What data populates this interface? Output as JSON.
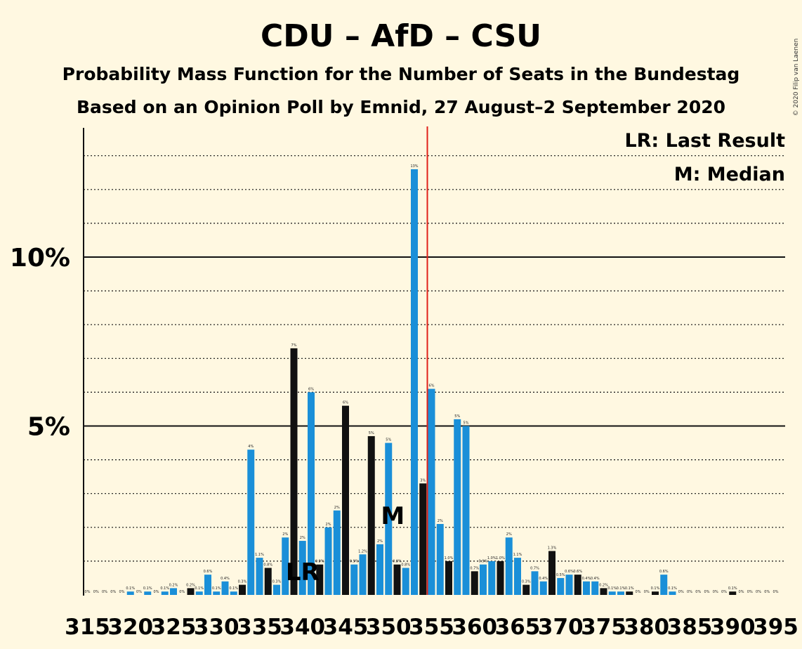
{
  "chart_data": {
    "type": "bar",
    "title": "CDU – AfD – CSU",
    "subtitle": "Probability Mass Function for the Number of Seats in the Bundestag",
    "subtitle2": "Based on an Opinion Poll by Emnid, 27 August–2 September 2020",
    "copyright": "© 2020 Filip van Laenen",
    "legend": [
      "LR: Last Result",
      "M: Median"
    ],
    "markers": {
      "last_result": "LR",
      "median": "M",
      "last_result_seats": 340,
      "median_seats": 350,
      "majority_seats": 355
    },
    "ylim": [
      0,
      13.8
    ],
    "y_ticks": [
      {
        "value": 5,
        "label": "5%"
      },
      {
        "value": 10,
        "label": "10%"
      }
    ],
    "x_tick_labels": [
      "315",
      "320",
      "325",
      "330",
      "335",
      "340",
      "345",
      "350",
      "355",
      "360",
      "365",
      "370",
      "375",
      "380",
      "385",
      "390",
      "395"
    ],
    "x_tick_values": [
      315,
      320,
      325,
      330,
      335,
      340,
      345,
      350,
      355,
      360,
      365,
      370,
      375,
      380,
      385,
      390,
      395
    ],
    "colors": {
      "blue": "#1a8fd8",
      "black": "#111111",
      "majority": "#e0211a",
      "background": "#fff8e1"
    },
    "series": [
      {
        "seats": [
          315,
          316,
          317,
          318,
          319,
          320,
          321,
          322,
          323,
          324,
          325,
          326,
          327,
          328,
          329,
          330,
          331,
          332,
          333,
          334,
          335,
          336,
          337,
          338,
          339,
          340,
          341,
          342,
          343,
          344,
          345,
          346,
          347,
          348,
          349,
          350,
          351,
          352,
          353,
          354,
          355,
          356,
          357,
          358,
          359,
          360,
          361,
          362,
          363,
          364,
          365,
          366,
          367,
          368,
          369,
          370,
          371,
          372,
          373,
          374,
          375,
          376,
          377,
          378,
          379,
          380,
          381,
          382,
          383,
          384,
          385,
          386,
          387,
          388,
          389,
          390,
          391,
          392,
          393,
          394,
          395
        ],
        "values": [
          0,
          0,
          0,
          0,
          0,
          0.1,
          0,
          0.1,
          0,
          0.1,
          0.2,
          0,
          0.2,
          0.1,
          0.6,
          0.1,
          0.4,
          0.1,
          0.3,
          4.3,
          1.1,
          0.8,
          0.3,
          1.7,
          7.3,
          1.6,
          6.0,
          0.9,
          2.0,
          2.5,
          5.6,
          0.9,
          1.2,
          4.7,
          1.5,
          4.5,
          0.9,
          0.8,
          12.6,
          3.3,
          6.1,
          2.1,
          1.0,
          5.2,
          5.0,
          0.7,
          0.9,
          1.0,
          1.0,
          1.7,
          1.1,
          0.3,
          0.7,
          0.4,
          1.3,
          0.5,
          0.6,
          0.6,
          0.4,
          0.4,
          0.2,
          0.1,
          0.1,
          0.1,
          0,
          0,
          0.1,
          0.6,
          0.1,
          0,
          0,
          0,
          0,
          0,
          0,
          0.1,
          0,
          0,
          0,
          0,
          0
        ],
        "labels": [
          "0%",
          "0%",
          "0%",
          "0%",
          "0%",
          "0.1%",
          "0%",
          "0.1%",
          "0%",
          "0.1%",
          "0.2%",
          "0%",
          "0.2%",
          "0.1%",
          "0.6%",
          "0.1%",
          "0.4%",
          "0.1%",
          "0.3%",
          "4%",
          "1.1%",
          "0.8%",
          "0.3%",
          "2%",
          "7%",
          "2%",
          "6%",
          "0.9%",
          "2%",
          "2%",
          "6%",
          "0.9%",
          "1.2%",
          "5%",
          "2%",
          "5%",
          "0.9%",
          "0.8%",
          "13%",
          "3%",
          "6%",
          "2%",
          "1.0%",
          "5%",
          "5%",
          "0.7%",
          "0.9%",
          "1.0%",
          "1.0%",
          "2%",
          "1.1%",
          "0.3%",
          "0.7%",
          "0.4%",
          "1.3%",
          "0.5%",
          "0.6%",
          "0.6%",
          "0.4%",
          "0.4%",
          "0.2%",
          "0.1%",
          "0.1%",
          "0.1%",
          "0%",
          "0%",
          "0.1%",
          "0.6%",
          "0.1%",
          "0%",
          "0%",
          "0%",
          "0%",
          "0%",
          "0%",
          "0.1%",
          "0%",
          "0%",
          "0%",
          "0%",
          "0%"
        ],
        "bar_colors": [
          "blue",
          "blue",
          "blue",
          "blue",
          "blue",
          "blue",
          "blue",
          "blue",
          "blue",
          "blue",
          "blue",
          "blue",
          "black",
          "blue",
          "blue",
          "blue",
          "blue",
          "blue",
          "black",
          "blue",
          "blue",
          "black",
          "blue",
          "blue",
          "black",
          "blue",
          "blue",
          "black",
          "blue",
          "blue",
          "black",
          "blue",
          "blue",
          "black",
          "blue",
          "blue",
          "black",
          "blue",
          "blue",
          "black",
          "blue",
          "blue",
          "black",
          "blue",
          "blue",
          "black",
          "blue",
          "blue",
          "black",
          "blue",
          "blue",
          "black",
          "blue",
          "blue",
          "black",
          "blue",
          "blue",
          "black",
          "blue",
          "blue",
          "black",
          "blue",
          "blue",
          "black",
          "blue",
          "blue",
          "black",
          "blue",
          "blue",
          "black",
          "blue",
          "blue",
          "black",
          "blue",
          "blue",
          "black",
          "blue",
          "blue",
          "black",
          "blue",
          "blue"
        ]
      }
    ]
  }
}
